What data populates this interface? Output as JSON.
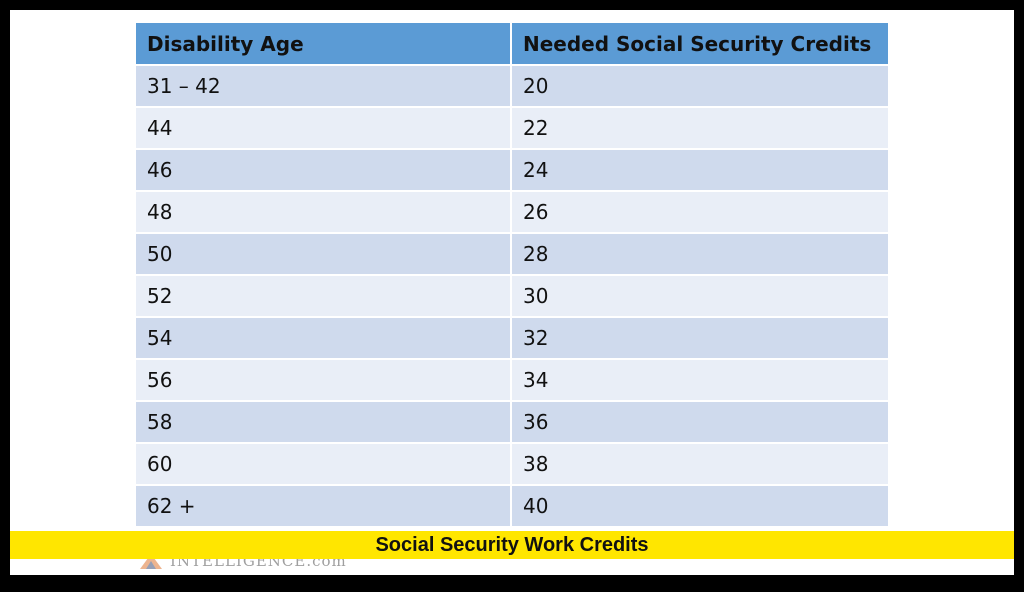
{
  "table": {
    "headers": [
      "Disability Age",
      "Needed Social Security Credits"
    ],
    "rows": [
      [
        "31 – 42",
        "20"
      ],
      [
        "44",
        "22"
      ],
      [
        "46",
        "24"
      ],
      [
        "48",
        "26"
      ],
      [
        "50",
        "28"
      ],
      [
        "52",
        "30"
      ],
      [
        "54",
        "32"
      ],
      [
        "56",
        "34"
      ],
      [
        "58",
        "36"
      ],
      [
        "60",
        "38"
      ],
      [
        "62 +",
        "40"
      ]
    ]
  },
  "caption": {
    "text": "Social Security Work Credits"
  },
  "watermark": {
    "text": "INTELLIGENCE.com"
  },
  "colors": {
    "header_bg": "#5b9bd5",
    "row_odd_bg": "#cfdaed",
    "row_even_bg": "#e9eef7",
    "caption_bg": "#ffe600",
    "border": "#000000"
  }
}
